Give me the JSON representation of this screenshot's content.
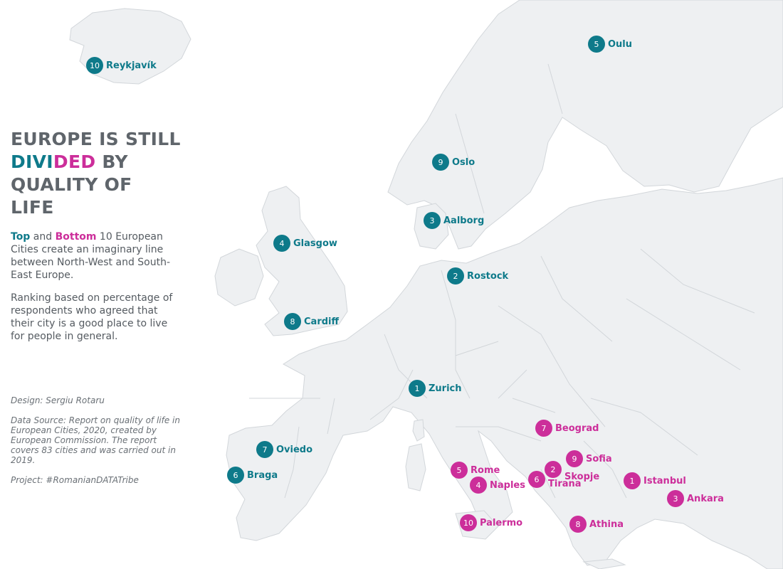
{
  "title": {
    "line1": "EUROPE IS STILL",
    "divided_top": "DIVI",
    "divided_bottom": "DED",
    "by": " BY",
    "line3": "QUALITY OF LIFE"
  },
  "description": {
    "top_word": "Top",
    "and": " and ",
    "bottom_word": "Bottom",
    "rest": " 10 European Cities create an imaginary line between North-West and South-East Europe.",
    "ranking": "Ranking based on percentage of respondents who agreed that their city is a good place to live for people in general."
  },
  "credits": {
    "design": "Design: Sergiu Rotaru",
    "source": "Data Source: Report on quality of life in European Cities, 2020, created by European Commission. The report covers 83 cities and was carried out in 2019.",
    "project": "Project: #RomanianDATATribe"
  },
  "colors": {
    "top": "#0e7a8a",
    "bottom": "#cc2e9a",
    "land": "#eef0f2",
    "border": "#d2d6da"
  },
  "cities": {
    "top": [
      {
        "rank": "1",
        "name": "Zurich"
      },
      {
        "rank": "2",
        "name": "Rostock"
      },
      {
        "rank": "3",
        "name": "Aalborg"
      },
      {
        "rank": "4",
        "name": "Glasgow"
      },
      {
        "rank": "5",
        "name": "Oulu"
      },
      {
        "rank": "6",
        "name": "Braga"
      },
      {
        "rank": "7",
        "name": "Oviedo"
      },
      {
        "rank": "8",
        "name": "Cardiff"
      },
      {
        "rank": "9",
        "name": "Oslo"
      },
      {
        "rank": "10",
        "name": "Reykjavík"
      }
    ],
    "bottom": [
      {
        "rank": "1",
        "name": "Istanbul"
      },
      {
        "rank": "2",
        "name": "Skopje"
      },
      {
        "rank": "3",
        "name": "Ankara"
      },
      {
        "rank": "4",
        "name": "Naples"
      },
      {
        "rank": "5",
        "name": "Rome"
      },
      {
        "rank": "6",
        "name": "Tirana"
      },
      {
        "rank": "7",
        "name": "Beograd"
      },
      {
        "rank": "8",
        "name": "Athina"
      },
      {
        "rank": "9",
        "name": "Sofia"
      },
      {
        "rank": "10",
        "name": "Palermo"
      }
    ]
  }
}
